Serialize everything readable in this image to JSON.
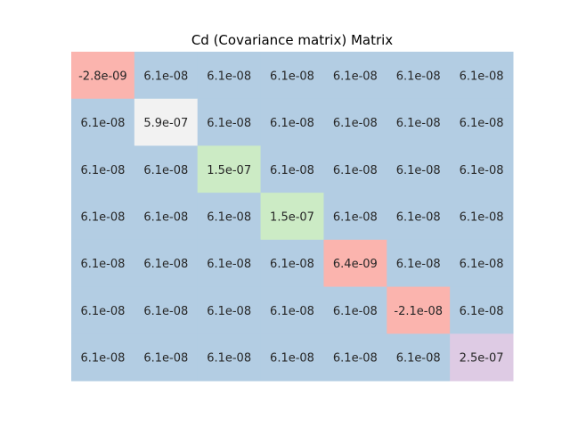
{
  "chart_data": {
    "type": "heatmap",
    "title": "Cd (Covariance matrix) Matrix",
    "xlabel": "",
    "ylabel": "",
    "grid": false,
    "legend": "none",
    "rows": 7,
    "cols": 7,
    "cells": [
      [
        "-2.8e-09",
        "6.1e-08",
        "6.1e-08",
        "6.1e-08",
        "6.1e-08",
        "6.1e-08",
        "6.1e-08"
      ],
      [
        "6.1e-08",
        "5.9e-07",
        "6.1e-08",
        "6.1e-08",
        "6.1e-08",
        "6.1e-08",
        "6.1e-08"
      ],
      [
        "6.1e-08",
        "6.1e-08",
        "1.5e-07",
        "6.1e-08",
        "6.1e-08",
        "6.1e-08",
        "6.1e-08"
      ],
      [
        "6.1e-08",
        "6.1e-08",
        "6.1e-08",
        "1.5e-07",
        "6.1e-08",
        "6.1e-08",
        "6.1e-08"
      ],
      [
        "6.1e-08",
        "6.1e-08",
        "6.1e-08",
        "6.1e-08",
        "6.4e-09",
        "6.1e-08",
        "6.1e-08"
      ],
      [
        "6.1e-08",
        "6.1e-08",
        "6.1e-08",
        "6.1e-08",
        "6.1e-08",
        "-2.1e-08",
        "6.1e-08"
      ],
      [
        "6.1e-08",
        "6.1e-08",
        "6.1e-08",
        "6.1e-08",
        "6.1e-08",
        "6.1e-08",
        "2.5e-07"
      ]
    ],
    "colors": [
      [
        "#fbb4ae",
        "#b3cde3",
        "#b3cde3",
        "#b3cde3",
        "#b3cde3",
        "#b3cde3",
        "#b3cde3"
      ],
      [
        "#b3cde3",
        "#f2f2f2",
        "#b3cde3",
        "#b3cde3",
        "#b3cde3",
        "#b3cde3",
        "#b3cde3"
      ],
      [
        "#b3cde3",
        "#b3cde3",
        "#ccebc5",
        "#b3cde3",
        "#b3cde3",
        "#b3cde3",
        "#b3cde3"
      ],
      [
        "#b3cde3",
        "#b3cde3",
        "#b3cde3",
        "#ccebc5",
        "#b3cde3",
        "#b3cde3",
        "#b3cde3"
      ],
      [
        "#b3cde3",
        "#b3cde3",
        "#b3cde3",
        "#b3cde3",
        "#fbb4ae",
        "#b3cde3",
        "#b3cde3"
      ],
      [
        "#b3cde3",
        "#b3cde3",
        "#b3cde3",
        "#b3cde3",
        "#b3cde3",
        "#fbb4ae",
        "#b3cde3"
      ],
      [
        "#b3cde3",
        "#b3cde3",
        "#b3cde3",
        "#b3cde3",
        "#b3cde3",
        "#b3cde3",
        "#decbe4"
      ]
    ]
  }
}
